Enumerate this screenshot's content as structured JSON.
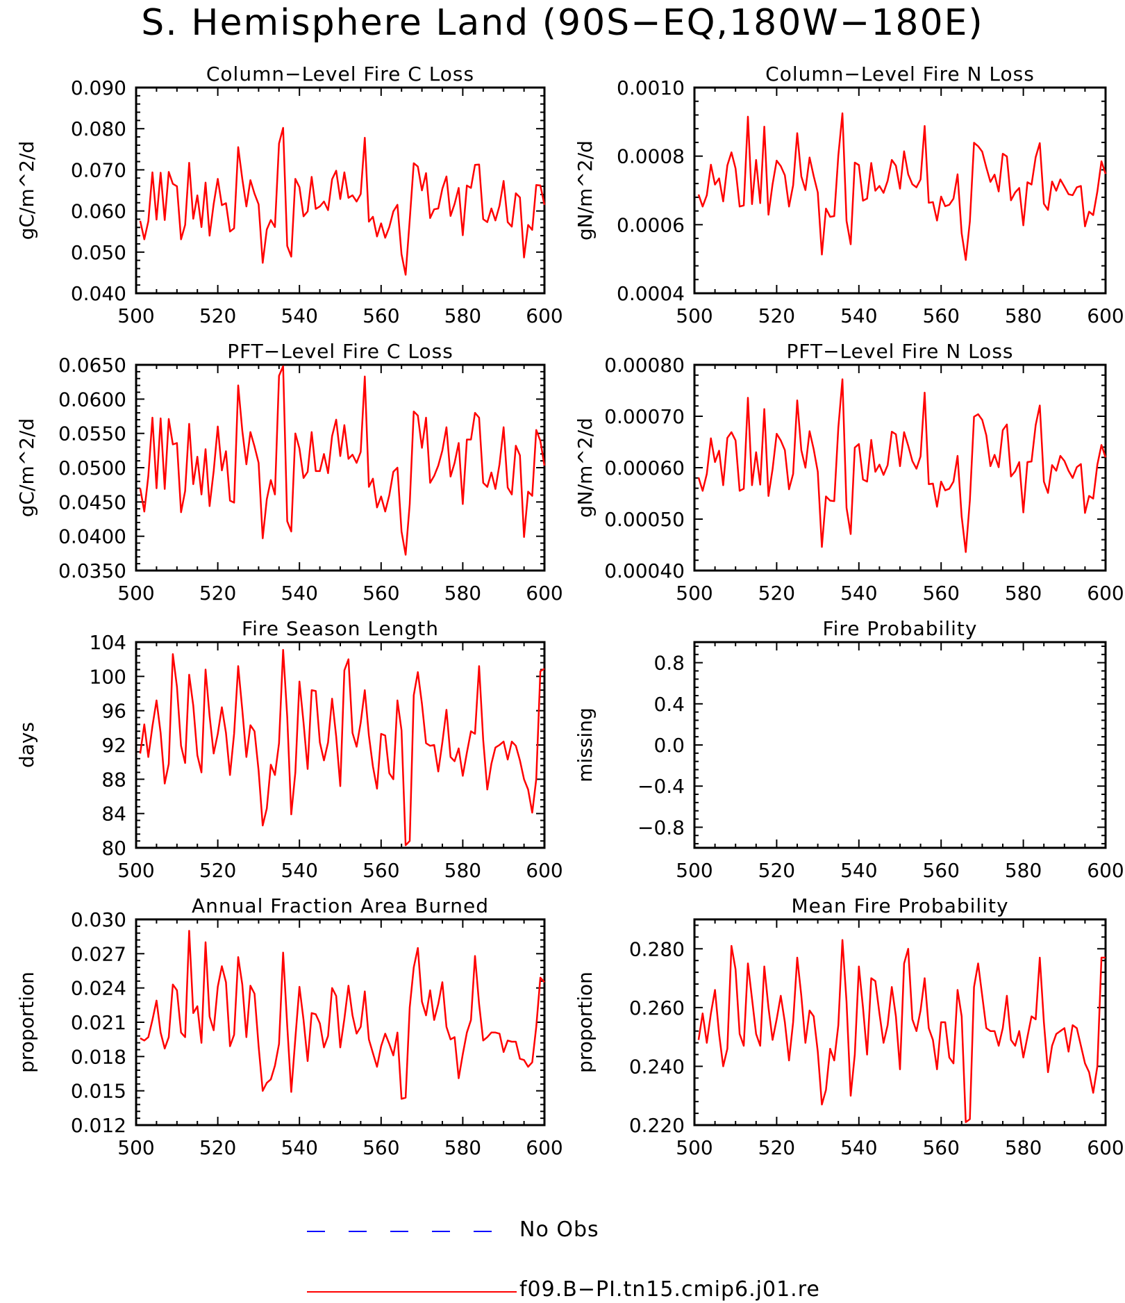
{
  "figure": {
    "title": "S. Hemisphere Land (90S−EQ,180W−180E)"
  },
  "legend": [
    {
      "label": "No Obs",
      "color": "#0000ff",
      "style": "dashed"
    },
    {
      "label": "f09.B−PI.tn15.cmip6.j01.re",
      "color": "#ff0000",
      "style": "solid"
    }
  ],
  "colors": {
    "series": "#ff0000",
    "axis": "#000000"
  },
  "chart_data": [
    {
      "type": "line",
      "title": "Column−Level Fire C Loss",
      "ylabel": "gC/m^2/d",
      "xlabel": "",
      "xlim": [
        500,
        600
      ],
      "xticks": [
        500,
        520,
        540,
        560,
        580,
        600
      ],
      "ylim": [
        0.04,
        0.09
      ],
      "yticks": [
        0.04,
        0.05,
        0.06,
        0.07,
        0.08,
        0.09
      ],
      "ytick_labels": [
        "0.040",
        "0.050",
        "0.060",
        "0.070",
        "0.080",
        "0.090"
      ],
      "series": [
        {
          "x_start": 501,
          "values": [
            0.0576,
            0.0531,
            0.0575,
            0.0694,
            0.0579,
            0.0693,
            0.0578,
            0.0695,
            0.0666,
            0.066,
            0.0531,
            0.0566,
            0.0717,
            0.0581,
            0.0638,
            0.0561,
            0.0669,
            0.054,
            0.0617,
            0.0678,
            0.0614,
            0.0619,
            0.055,
            0.0558,
            0.0755,
            0.0678,
            0.0611,
            0.0675,
            0.0642,
            0.0616,
            0.0474,
            0.0555,
            0.0578,
            0.0561,
            0.0764,
            0.0802,
            0.0515,
            0.0489,
            0.0678,
            0.0658,
            0.0587,
            0.0599,
            0.0683,
            0.0605,
            0.0611,
            0.0623,
            0.0602,
            0.0677,
            0.0698,
            0.0629,
            0.0694,
            0.0632,
            0.0638,
            0.0623,
            0.0641,
            0.0778,
            0.0574,
            0.0586,
            0.0538,
            0.057,
            0.0535,
            0.0561,
            0.0599,
            0.0615,
            0.0495,
            0.0445,
            0.0578,
            0.0716,
            0.0708,
            0.065,
            0.0692,
            0.0583,
            0.0604,
            0.0606,
            0.0654,
            0.0684,
            0.0588,
            0.0617,
            0.0656,
            0.0541,
            0.0662,
            0.0656,
            0.0712,
            0.0713,
            0.058,
            0.0573,
            0.0606,
            0.0577,
            0.0613,
            0.0673,
            0.0573,
            0.0562,
            0.0643,
            0.0633,
            0.0487,
            0.0566,
            0.0554,
            0.0663,
            0.0662,
            0.0615
          ]
        }
      ]
    },
    {
      "type": "line",
      "title": "Column−Level Fire N Loss",
      "ylabel": "gN/m^2/d",
      "xlabel": "",
      "xlim": [
        500,
        600
      ],
      "xticks": [
        500,
        520,
        540,
        560,
        580,
        600
      ],
      "ylim": [
        0.0004,
        0.001
      ],
      "yticks": [
        0.0004,
        0.0006,
        0.0008,
        0.001
      ],
      "ytick_labels": [
        "0.0004",
        "0.0006",
        "0.0008",
        "0.0010"
      ],
      "series": [
        {
          "x_start": 501,
          "values": [
            0.000688,
            0.000653,
            0.000686,
            0.000775,
            0.000717,
            0.000735,
            0.000668,
            0.000773,
            0.000811,
            0.000764,
            0.000653,
            0.000656,
            0.000915,
            0.00066,
            0.000789,
            0.000663,
            0.000886,
            0.000629,
            0.000718,
            0.000787,
            0.000771,
            0.000744,
            0.000653,
            0.000715,
            0.000867,
            0.000741,
            0.000701,
            0.000796,
            0.000742,
            0.000694,
            0.000513,
            0.000647,
            0.000623,
            0.000625,
            0.000802,
            0.000925,
            0.000611,
            0.000543,
            0.000781,
            0.000774,
            0.00067,
            0.000676,
            0.00078,
            0.000699,
            0.000713,
            0.000693,
            0.000728,
            0.000789,
            0.000772,
            0.000705,
            0.000814,
            0.000747,
            0.000718,
            0.000709,
            0.000732,
            0.000888,
            0.000664,
            0.000666,
            0.000612,
            0.000682,
            0.000654,
            0.000658,
            0.000676,
            0.000747,
            0.000575,
            0.000497,
            0.000609,
            0.000839,
            0.000829,
            0.000813,
            0.000767,
            0.000725,
            0.000746,
            0.000697,
            0.000807,
            0.000799,
            0.000671,
            0.000694,
            0.000707,
            0.000598,
            0.000724,
            0.000717,
            0.000797,
            0.000838,
            0.000661,
            0.000643,
            0.000726,
            0.000699,
            0.000732,
            0.000711,
            0.000689,
            0.000686,
            0.000709,
            0.000713,
            0.000595,
            0.000638,
            0.000628,
            0.000697,
            0.000785,
            0.000748
          ]
        }
      ]
    },
    {
      "type": "line",
      "title": "PFT−Level Fire C Loss",
      "ylabel": "gC/m^2/d",
      "xlabel": "",
      "xlim": [
        500,
        600
      ],
      "xticks": [
        500,
        520,
        540,
        560,
        580,
        600
      ],
      "ylim": [
        0.035,
        0.065
      ],
      "yticks": [
        0.035,
        0.04,
        0.045,
        0.05,
        0.055,
        0.06,
        0.065
      ],
      "ytick_labels": [
        "0.0350",
        "0.0400",
        "0.0450",
        "0.0500",
        "0.0550",
        "0.0600",
        "0.0650"
      ],
      "series": [
        {
          "x_start": 501,
          "values": [
            0.047,
            0.0436,
            0.0488,
            0.0573,
            0.047,
            0.0572,
            0.0469,
            0.0571,
            0.0534,
            0.0536,
            0.0435,
            0.0466,
            0.0564,
            0.0476,
            0.0516,
            0.0461,
            0.0527,
            0.0444,
            0.0495,
            0.056,
            0.0496,
            0.0524,
            0.0452,
            0.0449,
            0.062,
            0.0554,
            0.0505,
            0.0552,
            0.0531,
            0.0507,
            0.0397,
            0.0454,
            0.0482,
            0.0461,
            0.0634,
            0.0648,
            0.0422,
            0.0407,
            0.055,
            0.0528,
            0.0485,
            0.0494,
            0.0552,
            0.0495,
            0.0495,
            0.052,
            0.0492,
            0.0546,
            0.057,
            0.0517,
            0.0562,
            0.0513,
            0.0519,
            0.0507,
            0.0523,
            0.0633,
            0.0472,
            0.0484,
            0.0442,
            0.0458,
            0.0436,
            0.046,
            0.0494,
            0.05,
            0.0407,
            0.0373,
            0.0447,
            0.0582,
            0.0576,
            0.0529,
            0.0573,
            0.0478,
            0.0488,
            0.0503,
            0.0525,
            0.0559,
            0.0487,
            0.0507,
            0.0536,
            0.0447,
            0.0541,
            0.0541,
            0.058,
            0.0573,
            0.0478,
            0.0472,
            0.0493,
            0.0469,
            0.0505,
            0.0559,
            0.0471,
            0.0461,
            0.0532,
            0.0518,
            0.0399,
            0.0465,
            0.0459,
            0.0555,
            0.0539,
            0.0503
          ]
        }
      ]
    },
    {
      "type": "line",
      "title": "PFT−Level Fire N Loss",
      "ylabel": "gN/m^2/d",
      "xlabel": "",
      "xlim": [
        500,
        600
      ],
      "xticks": [
        500,
        520,
        540,
        560,
        580,
        600
      ],
      "ylim": [
        0.0004,
        0.0008
      ],
      "yticks": [
        0.0004,
        0.0005,
        0.0006,
        0.0007,
        0.0008
      ],
      "ytick_labels": [
        "0.00040",
        "0.00050",
        "0.00060",
        "0.00070",
        "0.00080"
      ],
      "series": [
        {
          "x_start": 501,
          "values": [
            0.000581,
            0.000555,
            0.000588,
            0.000657,
            0.000611,
            0.000633,
            0.000566,
            0.000658,
            0.000669,
            0.000653,
            0.000555,
            0.000559,
            0.000736,
            0.000566,
            0.00063,
            0.000567,
            0.000714,
            0.000545,
            0.000597,
            0.000666,
            0.000653,
            0.000634,
            0.000558,
            0.000588,
            0.000731,
            0.000634,
            0.0006,
            0.000671,
            0.000636,
            0.000592,
            0.000446,
            0.000544,
            0.000536,
            0.000535,
            0.000678,
            0.000772,
            0.000522,
            0.000471,
            0.000639,
            0.000646,
            0.000577,
            0.000573,
            0.000654,
            0.000592,
            0.000606,
            0.000586,
            0.000605,
            0.00067,
            0.000665,
            0.000603,
            0.000669,
            0.000643,
            0.000613,
            0.000598,
            0.000622,
            0.000746,
            0.000568,
            0.000569,
            0.000524,
            0.000573,
            0.000556,
            0.000559,
            0.000573,
            0.000623,
            0.000505,
            0.000436,
            0.000536,
            0.000699,
            0.000704,
            0.000693,
            0.000663,
            0.000603,
            0.000625,
            0.000601,
            0.000673,
            0.000684,
            0.000583,
            0.000593,
            0.000611,
            0.000513,
            0.000611,
            0.000612,
            0.000683,
            0.000721,
            0.000573,
            0.000551,
            0.000605,
            0.000594,
            0.000623,
            0.000613,
            0.000594,
            0.00058,
            0.000601,
            0.000607,
            0.000512,
            0.000545,
            0.00054,
            0.000606,
            0.000644,
            0.00062
          ]
        }
      ]
    },
    {
      "type": "line",
      "title": "Fire Season Length",
      "ylabel": "days",
      "xlabel": "",
      "xlim": [
        500,
        600
      ],
      "xticks": [
        500,
        520,
        540,
        560,
        580,
        600
      ],
      "ylim": [
        80,
        104
      ],
      "yticks": [
        80,
        84,
        88,
        92,
        96,
        100,
        104
      ],
      "ytick_labels": [
        "80",
        "84",
        "88",
        "92",
        "96",
        "100",
        "104"
      ],
      "series": [
        {
          "x_start": 501,
          "values": [
            91,
            94.4,
            90.6,
            94.2,
            97.2,
            93.4,
            87.5,
            89.8,
            102.6,
            98.8,
            91.9,
            89.9,
            100.2,
            96.6,
            90.8,
            88.8,
            100.8,
            95.4,
            91.0,
            93.3,
            96.4,
            93.4,
            88.5,
            93.3,
            101.2,
            96.1,
            90.6,
            94.3,
            93.6,
            89.0,
            82.6,
            84.6,
            89.7,
            88.5,
            92.2,
            103.1,
            95.3,
            83.9,
            88.8,
            99.4,
            94.6,
            89.2,
            98.4,
            98.3,
            92.3,
            90.2,
            92.3,
            97.4,
            93.0,
            87.2,
            100.7,
            102.0,
            93.4,
            91.8,
            94.6,
            98.4,
            93.1,
            89.5,
            86.9,
            93.3,
            93.1,
            88.7,
            88.0,
            97.2,
            93.7,
            80.3,
            80.8,
            97.8,
            100.5,
            96.8,
            92.2,
            91.9,
            92.0,
            88.9,
            92.3,
            96.1,
            90.6,
            90.1,
            91.6,
            88.4,
            91.1,
            93.6,
            93.3,
            101.2,
            92.6,
            86.8,
            89.8,
            91.7,
            92.0,
            92.4,
            90.3,
            92.4,
            91.9,
            90.2,
            88.0,
            86.8,
            84.1,
            88.0,
            100.6,
            100.9
          ]
        }
      ]
    },
    {
      "type": "line",
      "title": "Fire Probability",
      "ylabel": "missing",
      "xlabel": "",
      "xlim": [
        500,
        600
      ],
      "xticks": [
        500,
        520,
        540,
        560,
        580,
        600
      ],
      "ylim": [
        -1,
        1
      ],
      "yticks": [
        -0.8,
        -0.4,
        0,
        0.4,
        0.8
      ],
      "ytick_labels": [
        "−0.8",
        "−0.4",
        "0.0",
        "0.4",
        "0.8"
      ],
      "series": []
    },
    {
      "type": "line",
      "title": "Annual Fraction Area Burned",
      "ylabel": "proportion",
      "xlabel": "",
      "xlim": [
        500,
        600
      ],
      "xticks": [
        500,
        520,
        540,
        560,
        580,
        600
      ],
      "ylim": [
        0.012,
        0.03
      ],
      "yticks": [
        0.012,
        0.015,
        0.018,
        0.021,
        0.024,
        0.027,
        0.03
      ],
      "ytick_labels": [
        "0.012",
        "0.015",
        "0.018",
        "0.021",
        "0.024",
        "0.027",
        "0.030"
      ],
      "series": [
        {
          "x_start": 501,
          "values": [
            0.0196,
            0.0194,
            0.0197,
            0.0212,
            0.0229,
            0.0201,
            0.0187,
            0.0197,
            0.0243,
            0.0238,
            0.0201,
            0.0197,
            0.029,
            0.0218,
            0.0224,
            0.0192,
            0.028,
            0.0215,
            0.0203,
            0.0241,
            0.0259,
            0.0245,
            0.0189,
            0.0199,
            0.0267,
            0.0243,
            0.0197,
            0.0242,
            0.0235,
            0.0189,
            0.015,
            0.0157,
            0.016,
            0.0172,
            0.0191,
            0.0271,
            0.0207,
            0.0149,
            0.0196,
            0.0241,
            0.0212,
            0.0176,
            0.0218,
            0.0217,
            0.0209,
            0.0188,
            0.0198,
            0.024,
            0.0233,
            0.0188,
            0.0213,
            0.0242,
            0.0216,
            0.02,
            0.0206,
            0.0237,
            0.0195,
            0.0183,
            0.0171,
            0.0189,
            0.02,
            0.0191,
            0.0181,
            0.0201,
            0.0143,
            0.0144,
            0.0223,
            0.0258,
            0.0275,
            0.0228,
            0.0216,
            0.0238,
            0.0212,
            0.0226,
            0.0245,
            0.0206,
            0.0195,
            0.0197,
            0.0161,
            0.0182,
            0.0201,
            0.0212,
            0.0268,
            0.0226,
            0.0194,
            0.0197,
            0.0201,
            0.0201,
            0.02,
            0.0184,
            0.0194,
            0.0193,
            0.0193,
            0.0178,
            0.0177,
            0.0171,
            0.0175,
            0.0206,
            0.0249,
            0.0245
          ]
        }
      ]
    },
    {
      "type": "line",
      "title": "Mean Fire Probability",
      "ylabel": "proportion",
      "xlabel": "",
      "xlim": [
        500,
        600
      ],
      "xticks": [
        500,
        520,
        540,
        560,
        580,
        600
      ],
      "ylim": [
        0.22,
        0.29
      ],
      "yticks": [
        0.22,
        0.24,
        0.26,
        0.28
      ],
      "ytick_labels": [
        "0.220",
        "0.240",
        "0.260",
        "0.280"
      ],
      "series": [
        {
          "x_start": 501,
          "values": [
            0.249,
            0.258,
            0.248,
            0.258,
            0.266,
            0.251,
            0.24,
            0.246,
            0.281,
            0.273,
            0.251,
            0.247,
            0.275,
            0.263,
            0.251,
            0.247,
            0.274,
            0.26,
            0.249,
            0.256,
            0.264,
            0.255,
            0.242,
            0.255,
            0.277,
            0.264,
            0.248,
            0.259,
            0.257,
            0.245,
            0.227,
            0.232,
            0.246,
            0.242,
            0.254,
            0.283,
            0.262,
            0.23,
            0.244,
            0.274,
            0.26,
            0.244,
            0.27,
            0.269,
            0.258,
            0.248,
            0.254,
            0.267,
            0.257,
            0.239,
            0.275,
            0.28,
            0.256,
            0.252,
            0.259,
            0.27,
            0.253,
            0.249,
            0.239,
            0.255,
            0.255,
            0.243,
            0.241,
            0.266,
            0.257,
            0.221,
            0.222,
            0.267,
            0.275,
            0.264,
            0.253,
            0.252,
            0.252,
            0.247,
            0.253,
            0.264,
            0.249,
            0.247,
            0.252,
            0.243,
            0.25,
            0.257,
            0.256,
            0.277,
            0.255,
            0.238,
            0.247,
            0.251,
            0.252,
            0.253,
            0.245,
            0.254,
            0.253,
            0.247,
            0.241,
            0.238,
            0.231,
            0.24,
            0.277,
            0.277
          ]
        }
      ]
    }
  ]
}
